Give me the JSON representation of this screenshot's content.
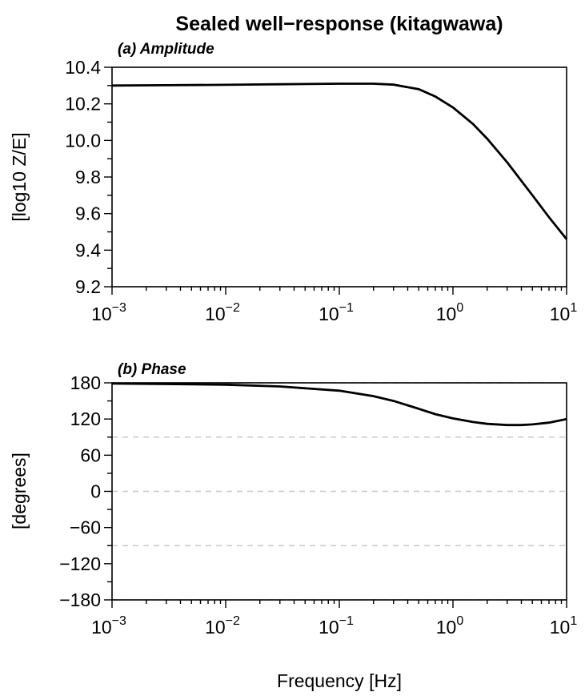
{
  "chart_data": {
    "title": "Sealed well−response (kitagwawa)",
    "xlabel": "Frequency [Hz]",
    "panels": [
      {
        "type": "line",
        "label": "(a) Amplitude",
        "ylabel": "[log10 Z/E]",
        "xscale": "log",
        "xlim": [
          0.001,
          10
        ],
        "ylim": [
          9.2,
          10.4
        ],
        "xticks": [
          {
            "base": "10",
            "exp": "−3",
            "value": 0.001
          },
          {
            "base": "10",
            "exp": "−2",
            "value": 0.01
          },
          {
            "base": "10",
            "exp": "−1",
            "value": 0.1
          },
          {
            "base": "10",
            "exp": "0",
            "value": 1
          },
          {
            "base": "10",
            "exp": "1",
            "value": 10
          }
        ],
        "yticks": [
          "9.2",
          "9.4",
          "9.6",
          "9.8",
          "10.0",
          "10.2",
          "10.4"
        ],
        "ytick_values": [
          9.2,
          9.4,
          9.6,
          9.8,
          10.0,
          10.2,
          10.4
        ],
        "reference_lines": [],
        "series": [
          {
            "x": [
              0.001,
              0.003,
              0.01,
              0.03,
              0.1,
              0.2,
              0.3,
              0.5,
              0.7,
              1.0,
              1.5,
              2.0,
              3.0,
              5.0,
              7.0,
              10.0
            ],
            "y": [
              10.3,
              10.302,
              10.304,
              10.307,
              10.31,
              10.31,
              10.305,
              10.28,
              10.24,
              10.18,
              10.09,
              10.01,
              9.88,
              9.7,
              9.58,
              9.46
            ]
          }
        ]
      },
      {
        "type": "line",
        "label": "(b) Phase",
        "ylabel": "[degrees]",
        "xscale": "log",
        "xlim": [
          0.001,
          10
        ],
        "ylim": [
          -180,
          180
        ],
        "xticks": [
          {
            "base": "10",
            "exp": "−3",
            "value": 0.001
          },
          {
            "base": "10",
            "exp": "−2",
            "value": 0.01
          },
          {
            "base": "10",
            "exp": "−1",
            "value": 0.1
          },
          {
            "base": "10",
            "exp": "0",
            "value": 1
          },
          {
            "base": "10",
            "exp": "1",
            "value": 10
          }
        ],
        "yticks": [
          "−180",
          "−120",
          "−60",
          "0",
          "60",
          "120",
          "180"
        ],
        "ytick_values": [
          -180,
          -120,
          -60,
          0,
          60,
          120,
          180
        ],
        "reference_lines": [
          -180,
          -90,
          0,
          90,
          180
        ],
        "series": [
          {
            "x": [
              0.001,
              0.003,
              0.01,
              0.03,
              0.1,
              0.2,
              0.3,
              0.5,
              0.7,
              1.0,
              1.5,
              2.0,
              3.0,
              4.0,
              5.0,
              7.0,
              10.0
            ],
            "y": [
              179,
              178,
              177,
              174,
              167,
              158,
              150,
              137,
              128,
              121,
              115,
              112,
              110,
              110,
              111,
              114,
              120
            ]
          }
        ]
      }
    ]
  }
}
